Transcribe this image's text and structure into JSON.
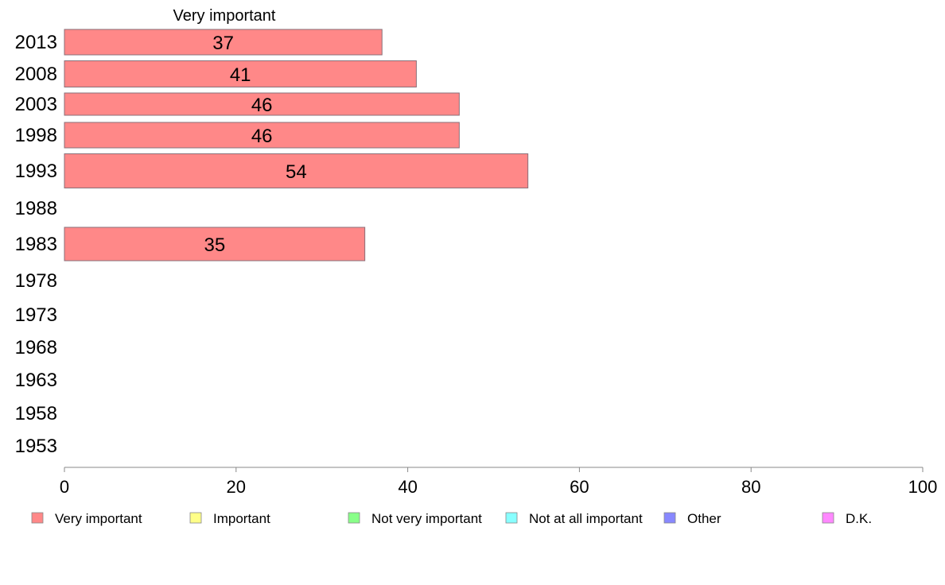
{
  "chart_data": {
    "type": "bar",
    "orientation": "horizontal",
    "title": "Very important",
    "categories": [
      "2013",
      "2008",
      "2003",
      "1998",
      "1993",
      "1988",
      "1983",
      "1978",
      "1973",
      "1968",
      "1963",
      "1958",
      "1953"
    ],
    "series": [
      {
        "name": "Very important",
        "values": [
          37,
          41,
          46,
          46,
          54,
          null,
          35,
          null,
          null,
          null,
          null,
          null,
          null
        ],
        "color": "#ff8888"
      }
    ],
    "xlim": [
      0,
      100
    ],
    "xticks": [
      0,
      20,
      40,
      60,
      80,
      100
    ],
    "grid": false,
    "legend": {
      "position": "bottom",
      "items": [
        {
          "label": "Very important",
          "color": "#ff8888"
        },
        {
          "label": "Important",
          "color": "#ffff88"
        },
        {
          "label": "Not very important",
          "color": "#88ff88"
        },
        {
          "label": "Not at all important",
          "color": "#88ffff"
        },
        {
          "label": "Other",
          "color": "#8888ff"
        },
        {
          "label": "D.K.",
          "color": "#ff88ff"
        }
      ]
    }
  }
}
